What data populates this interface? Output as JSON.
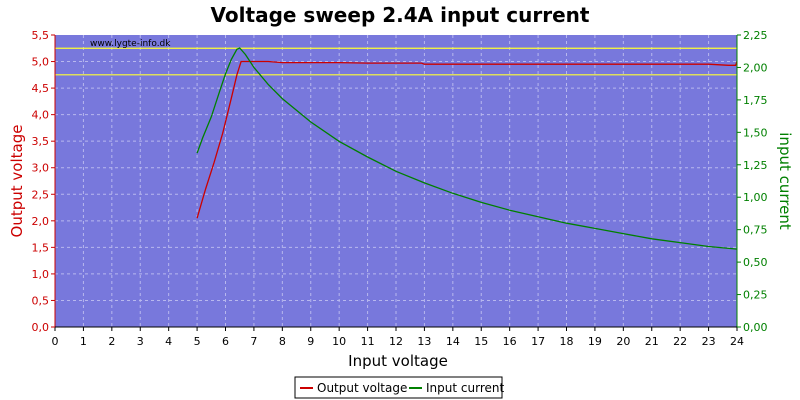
{
  "chart_data": {
    "type": "line",
    "title": "Voltage sweep 2.4A input current",
    "xlabel": "Input voltage",
    "ylabel_left": "Output voltage",
    "ylabel_right": "input current",
    "watermark": "www.lygte-info.dk",
    "xlim": [
      0,
      24
    ],
    "ylim_left": [
      0,
      5.5
    ],
    "ylim_right": [
      0,
      2.25
    ],
    "x_ticks": [
      "0",
      "1",
      "2",
      "3",
      "4",
      "5",
      "6",
      "7",
      "8",
      "9",
      "10",
      "11",
      "12",
      "13",
      "14",
      "15",
      "16",
      "17",
      "18",
      "19",
      "20",
      "21",
      "22",
      "23",
      "24"
    ],
    "y_left_ticks": [
      "0,0",
      "0,5",
      "1,0",
      "1,5",
      "2,0",
      "2,5",
      "3,0",
      "3,5",
      "4,0",
      "4,5",
      "5,0",
      "5,5"
    ],
    "y_right_ticks": [
      "0,00",
      "0,25",
      "0,50",
      "0,75",
      "1,00",
      "1,25",
      "1,50",
      "1,75",
      "2,00",
      "2,25"
    ],
    "grid": true,
    "reference_lines_left": [
      5.25,
      4.75
    ],
    "legend": {
      "placement": "bottom-center",
      "entries": [
        "Output voltage",
        "Input current"
      ]
    },
    "series": [
      {
        "name": "Output voltage",
        "axis": "left",
        "color": "#cc0000",
        "points": [
          [
            5.0,
            2.05
          ],
          [
            5.3,
            2.6
          ],
          [
            5.6,
            3.1
          ],
          [
            5.9,
            3.65
          ],
          [
            6.2,
            4.3
          ],
          [
            6.4,
            4.75
          ],
          [
            6.55,
            5.0
          ],
          [
            7.0,
            5.0
          ],
          [
            7.5,
            5.0
          ],
          [
            8.0,
            4.98
          ],
          [
            9,
            4.98
          ],
          [
            10,
            4.98
          ],
          [
            11,
            4.97
          ],
          [
            12,
            4.97
          ],
          [
            12.9,
            4.97
          ],
          [
            13.0,
            4.95
          ],
          [
            14,
            4.95
          ],
          [
            16,
            4.95
          ],
          [
            18,
            4.95
          ],
          [
            20,
            4.95
          ],
          [
            22,
            4.95
          ],
          [
            23,
            4.95
          ],
          [
            23.7,
            4.93
          ],
          [
            23.95,
            4.93
          ],
          [
            24.0,
            5.0
          ]
        ]
      },
      {
        "name": "Input current",
        "axis": "right",
        "color": "#008000",
        "points": [
          [
            5.0,
            1.34
          ],
          [
            5.2,
            1.46
          ],
          [
            5.5,
            1.62
          ],
          [
            5.8,
            1.82
          ],
          [
            6.0,
            1.95
          ],
          [
            6.2,
            2.06
          ],
          [
            6.4,
            2.14
          ],
          [
            6.5,
            2.15
          ],
          [
            6.7,
            2.1
          ],
          [
            7.0,
            2.0
          ],
          [
            7.5,
            1.87
          ],
          [
            8.0,
            1.76
          ],
          [
            9,
            1.58
          ],
          [
            10,
            1.43
          ],
          [
            11,
            1.31
          ],
          [
            12,
            1.2
          ],
          [
            13,
            1.11
          ],
          [
            14,
            1.03
          ],
          [
            15,
            0.96
          ],
          [
            16,
            0.9
          ],
          [
            17,
            0.85
          ],
          [
            18,
            0.8
          ],
          [
            19,
            0.76
          ],
          [
            20,
            0.72
          ],
          [
            21,
            0.68
          ],
          [
            22,
            0.65
          ],
          [
            23,
            0.62
          ],
          [
            24,
            0.6
          ]
        ]
      }
    ]
  }
}
